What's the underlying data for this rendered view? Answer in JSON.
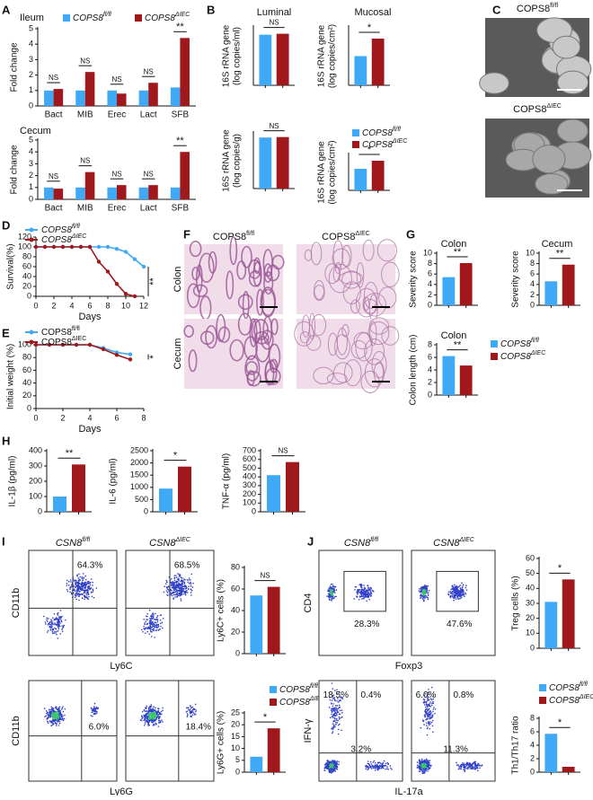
{
  "panels": [
    "A",
    "B",
    "C",
    "D",
    "E",
    "F",
    "G",
    "H",
    "I",
    "J"
  ],
  "chart_data": [
    {
      "type": "bar",
      "title": "Ileum",
      "ylabel": "Fold change",
      "categories": [
        "Bact",
        "MIB",
        "Erec",
        "Lact",
        "SFB"
      ],
      "series": [
        {
          "name": "COPS8fl/fl",
          "color": "#3fa9f5",
          "values": [
            1.0,
            1.0,
            1.0,
            1.0,
            1.2
          ]
        },
        {
          "name": "COPS8ΔIEC",
          "color": "#a0181c",
          "values": [
            1.1,
            2.2,
            0.8,
            1.5,
            4.4
          ]
        }
      ],
      "ylim": [
        0,
        5
      ],
      "yticks": [
        0,
        1,
        2,
        3,
        4,
        5
      ],
      "annotations": [
        "NS",
        "NS",
        "NS",
        "NS",
        "**"
      ],
      "legend": "top"
    },
    {
      "type": "bar",
      "title": "Cecum",
      "ylabel": "Fold change",
      "categories": [
        "Bact",
        "MIB",
        "Erec",
        "Lact",
        "SFB"
      ],
      "series": [
        {
          "color": "#3fa9f5",
          "values": [
            1.0,
            1.0,
            1.0,
            1.0,
            1.0
          ]
        },
        {
          "color": "#a0181c",
          "values": [
            0.9,
            2.3,
            1.2,
            1.2,
            4.0
          ]
        }
      ],
      "ylim": [
        0,
        5
      ],
      "yticks": [
        0,
        1,
        2,
        3,
        4,
        5
      ],
      "annotations": [
        "NS",
        "NS",
        "NS",
        "NS",
        "**"
      ]
    },
    {
      "type": "bar",
      "title": "Luminal",
      "ylabel": [
        "16S rRNA gene",
        "(log copies/ml)"
      ],
      "series": [
        {
          "color": "#3fa9f5",
          "values": [
            10.4
          ]
        },
        {
          "color": "#a0181c",
          "values": [
            10.6
          ]
        }
      ],
      "ylim": [
        0,
        12
      ],
      "annotation": "NS"
    },
    {
      "type": "bar",
      "title": "Mucosal",
      "ylabel": [
        "16S rRNA gene",
        "(log copies/cm²)"
      ],
      "series": [
        {
          "color": "#3fa9f5",
          "values": [
            6.0
          ]
        },
        {
          "color": "#a0181c",
          "values": [
            9.6
          ]
        }
      ],
      "ylim": [
        0,
        12
      ],
      "annotation": "*"
    },
    {
      "type": "bar",
      "ylabel": [
        "16S rRNA gene",
        "(log copies/g)"
      ],
      "series": [
        {
          "color": "#3fa9f5",
          "values": [
            11.0
          ]
        },
        {
          "color": "#a0181c",
          "values": [
            11.1
          ]
        }
      ],
      "ylim": [
        0,
        12
      ],
      "annotation": "NS"
    },
    {
      "type": "bar",
      "ylabel": [
        "16S rRNA gene",
        "(log copies/cm²)"
      ],
      "series": [
        {
          "name": "COPS8fl/fl",
          "color": "#3fa9f5",
          "values": [
            4.8
          ]
        },
        {
          "name": "COPS8ΔIEC",
          "color": "#a0181c",
          "values": [
            6.6
          ]
        }
      ],
      "ylim": [
        0,
        8
      ],
      "annotation": "*",
      "legend": "top"
    },
    {
      "type": "line",
      "ylabel": "Survival(%)",
      "xlabel": "Days",
      "x": [
        0,
        1,
        2,
        3,
        4,
        5,
        6,
        7,
        8,
        9,
        10,
        11,
        12
      ],
      "series": [
        {
          "name": "COPS8fl/fl",
          "color": "#3fa9f5",
          "values": [
            100,
            100,
            100,
            100,
            100,
            100,
            100,
            100,
            100,
            96,
            90,
            75,
            60
          ]
        },
        {
          "name": "COPS8ΔIEC",
          "color": "#a0181c",
          "values": [
            100,
            100,
            100,
            100,
            100,
            100,
            100,
            70,
            50,
            25,
            5,
            0,
            null
          ]
        }
      ],
      "xlim": [
        0,
        12
      ],
      "xticks": [
        0,
        2,
        4,
        6,
        8,
        10,
        12
      ],
      "ylim": [
        0,
        120
      ],
      "yticks": [
        0,
        20,
        40,
        60,
        80,
        100,
        120
      ],
      "annotation": "**",
      "legend": "top"
    },
    {
      "type": "line",
      "ylabel": "Initial weight (%)",
      "xlabel": "Days",
      "x": [
        0,
        1,
        2,
        3,
        4,
        5,
        6,
        7
      ],
      "series": [
        {
          "name": "COPS8fl/fl",
          "color": "#3fa9f5",
          "values": [
            100,
            100,
            100,
            100,
            100,
            95,
            88,
            85
          ]
        },
        {
          "name": "COPS8ΔIEC",
          "color": "#a0181c",
          "values": [
            100,
            100,
            100,
            100,
            100,
            93,
            84,
            77
          ]
        }
      ],
      "xlim": [
        0,
        8
      ],
      "xticks": [
        0,
        2,
        4,
        6,
        8
      ],
      "ylim": [
        0,
        100
      ],
      "yticks": [
        0,
        20,
        40,
        60,
        80,
        100
      ],
      "annotation": "*",
      "legend": "top"
    },
    {
      "type": "bar",
      "title": "Colon",
      "ylabel": "Severity score",
      "series": [
        {
          "color": "#3fa9f5",
          "values": [
            5.4
          ]
        },
        {
          "color": "#a0181c",
          "values": [
            8.1
          ]
        }
      ],
      "ylim": [
        0,
        10
      ],
      "yticks": [
        0,
        2,
        4,
        6,
        8,
        10
      ],
      "annotation": "**"
    },
    {
      "type": "bar",
      "title": "Cecum",
      "ylabel": "Severity score",
      "series": [
        {
          "color": "#3fa9f5",
          "values": [
            4.6
          ]
        },
        {
          "color": "#a0181c",
          "values": [
            7.8
          ]
        }
      ],
      "ylim": [
        0,
        10
      ],
      "yticks": [
        0,
        2,
        4,
        6,
        8,
        10
      ],
      "annotation": "**"
    },
    {
      "type": "bar",
      "title": "Colon",
      "ylabel": "Colon length (cm)",
      "series": [
        {
          "name": "COPS8fl/fl",
          "color": "#3fa9f5",
          "values": [
            6.2
          ]
        },
        {
          "name": "COPS8ΔIEC",
          "color": "#a0181c",
          "values": [
            4.7
          ]
        }
      ],
      "ylim": [
        0,
        8
      ],
      "yticks": [
        0,
        2,
        4,
        6,
        8
      ],
      "annotation": "**",
      "legend": "right"
    },
    {
      "type": "bar",
      "ylabel": "IL-1β (pg/ml)",
      "series": [
        {
          "color": "#3fa9f5",
          "values": [
            100
          ]
        },
        {
          "color": "#a0181c",
          "values": [
            310
          ]
        }
      ],
      "ylim": [
        0,
        400
      ],
      "yticks": [
        0,
        100,
        200,
        300,
        400
      ],
      "annotation": "**"
    },
    {
      "type": "bar",
      "ylabel": "IL-6 (pg/ml)",
      "series": [
        {
          "color": "#3fa9f5",
          "values": [
            950
          ]
        },
        {
          "color": "#a0181c",
          "values": [
            1850
          ]
        }
      ],
      "ylim": [
        0,
        2500
      ],
      "yticks": [
        0,
        500,
        1000,
        1500,
        2000,
        2500
      ],
      "annotation": "*"
    },
    {
      "type": "bar",
      "ylabel": "TNF-α (pg/ml)",
      "series": [
        {
          "color": "#3fa9f5",
          "values": [
            420
          ]
        },
        {
          "color": "#a0181c",
          "values": [
            570
          ]
        }
      ],
      "ylim": [
        0,
        700
      ],
      "yticks": [
        0,
        100,
        200,
        300,
        400,
        500,
        600,
        700
      ],
      "annotation": "NS"
    },
    {
      "type": "bar",
      "ylabel": "Ly6C+ cells (%)",
      "series": [
        {
          "color": "#3fa9f5",
          "values": [
            54
          ]
        },
        {
          "color": "#a0181c",
          "values": [
            62
          ]
        }
      ],
      "ylim": [
        0,
        80
      ],
      "yticks": [
        0,
        20,
        40,
        60,
        80
      ],
      "annotation": "NS"
    },
    {
      "type": "bar",
      "ylabel": "Ly6G+ cells (%)",
      "series": [
        {
          "name": "COPS8fl/fl",
          "color": "#3fa9f5",
          "values": [
            6.5
          ]
        },
        {
          "name": "COPS8ΔIEC",
          "color": "#a0181c",
          "values": [
            18.5
          ]
        }
      ],
      "ylim": [
        0,
        25
      ],
      "yticks": [
        0,
        5,
        10,
        15,
        20,
        25
      ],
      "annotation": "*",
      "legend": "top"
    },
    {
      "type": "bar",
      "ylabel": "Treg cells (%)",
      "series": [
        {
          "color": "#3fa9f5",
          "values": [
            31
          ]
        },
        {
          "color": "#a0181c",
          "values": [
            46
          ]
        }
      ],
      "ylim": [
        0,
        60
      ],
      "yticks": [
        0,
        10,
        20,
        30,
        40,
        50,
        60
      ],
      "annotation": "*"
    },
    {
      "type": "bar",
      "ylabel": "Th1/Th17 ratio",
      "series": [
        {
          "name": "COPS8fl/fl",
          "color": "#3fa9f5",
          "values": [
            5.7
          ]
        },
        {
          "name": "COPS8ΔIEC",
          "color": "#a0181c",
          "values": [
            0.8
          ]
        }
      ],
      "ylim": [
        0,
        8
      ],
      "yticks": [
        0,
        2,
        4,
        6,
        8
      ],
      "annotation": "*",
      "legend": "top"
    }
  ],
  "images": {
    "C": {
      "titles": [
        "COPS8fl/fl",
        "COPS8ΔIEC"
      ]
    },
    "F": {
      "titles": [
        "COPS8fl/fl",
        "COPS8ΔIEC"
      ],
      "rows": [
        "Colon",
        "Cecum"
      ]
    }
  },
  "flow": {
    "I": {
      "titles": [
        "CSN8fl/fl",
        "CSN8ΔIEC"
      ],
      "rows": [
        {
          "ylabel": "CD11b",
          "xlabel": "Ly6C",
          "gate": "quadrant",
          "labels": [
            [
              "64.3%"
            ],
            [
              "68.5%"
            ]
          ]
        },
        {
          "ylabel": "CD11b",
          "xlabel": "Ly6G",
          "gate": "quadrant",
          "labels": [
            [
              "6.0%"
            ],
            [
              "18.4%"
            ]
          ]
        }
      ]
    },
    "J": {
      "titles": [
        "CSN8fl/fl",
        "CSN8ΔIEC"
      ],
      "rows": [
        {
          "ylabel": "CD4",
          "xlabel": "Foxp3",
          "gate": "box",
          "labels": [
            [
              "28.3%"
            ],
            [
              "47.6%"
            ]
          ]
        },
        {
          "ylabel": "IFN-γ",
          "xlabel": "IL-17a",
          "gate": "quadrant",
          "labels": [
            [
              "18.5%",
              "0.4%",
              "3.2%"
            ],
            [
              "6.0%",
              "0.8%",
              "11.3%"
            ]
          ]
        }
      ]
    }
  }
}
